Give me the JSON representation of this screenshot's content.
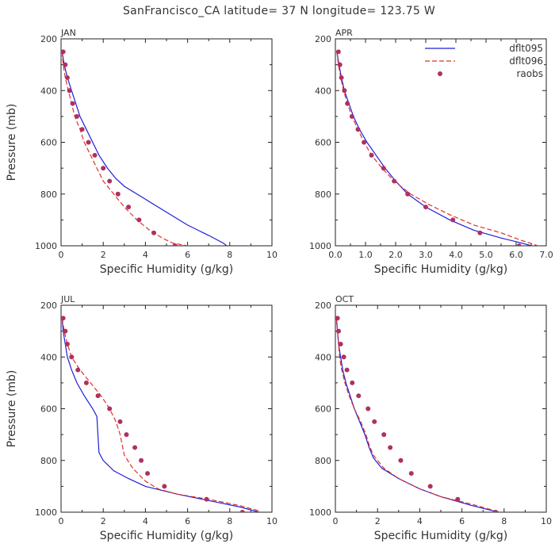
{
  "figure": {
    "title": "SanFrancisco_CA  latitude= 37 N longitude= 123.75 W"
  },
  "legend": {
    "entries": [
      {
        "name": "dflt095",
        "style": "solid",
        "color": "#1f1fd6"
      },
      {
        "name": "dflt096",
        "style": "dashed",
        "color": "#e0302a"
      },
      {
        "name": "raobs",
        "style": "marker",
        "color": "#b03060"
      }
    ]
  },
  "chart_data": [
    {
      "type": "line",
      "panel_title": "JAN",
      "xlabel": "Specific Humidity (g/kg)",
      "ylabel": "Pressure (mb)",
      "xlim": [
        0,
        10
      ],
      "ylim": [
        1000,
        200
      ],
      "y_inverted": true,
      "xticks": [
        0,
        2,
        4,
        6,
        8,
        10
      ],
      "xtick_labels": [
        "0",
        "2",
        "4",
        "6",
        "8",
        "10"
      ],
      "yticks": [
        200,
        400,
        600,
        800,
        1000
      ],
      "ytick_labels": [
        "200",
        "400",
        "600",
        "800",
        "1000"
      ],
      "series": [
        {
          "name": "dflt095",
          "style": "solid",
          "points": [
            [
              0.05,
              250
            ],
            [
              0.15,
              300
            ],
            [
              0.3,
              350
            ],
            [
              0.5,
              400
            ],
            [
              0.7,
              450
            ],
            [
              0.9,
              500
            ],
            [
              1.2,
              550
            ],
            [
              1.5,
              600
            ],
            [
              1.8,
              650
            ],
            [
              2.2,
              700
            ],
            [
              2.6,
              740
            ],
            [
              3.0,
              770
            ],
            [
              4.0,
              820
            ],
            [
              5.0,
              870
            ],
            [
              6.0,
              920
            ],
            [
              7.0,
              960
            ],
            [
              7.7,
              990
            ],
            [
              8.0,
              1010
            ]
          ]
        },
        {
          "name": "dflt096",
          "style": "dashed",
          "points": [
            [
              0.05,
              250
            ],
            [
              0.1,
              300
            ],
            [
              0.2,
              350
            ],
            [
              0.35,
              400
            ],
            [
              0.5,
              450
            ],
            [
              0.65,
              500
            ],
            [
              0.9,
              550
            ],
            [
              1.1,
              600
            ],
            [
              1.4,
              650
            ],
            [
              1.7,
              700
            ],
            [
              2.0,
              750
            ],
            [
              2.5,
              800
            ],
            [
              3.0,
              850
            ],
            [
              3.6,
              900
            ],
            [
              4.2,
              940
            ],
            [
              4.8,
              970
            ],
            [
              5.3,
              990
            ],
            [
              6.0,
              1000
            ],
            [
              7.0,
              1010
            ]
          ]
        },
        {
          "name": "raobs",
          "style": "marker",
          "points": [
            [
              0.1,
              250
            ],
            [
              0.2,
              300
            ],
            [
              0.3,
              350
            ],
            [
              0.4,
              400
            ],
            [
              0.55,
              450
            ],
            [
              0.75,
              500
            ],
            [
              1.0,
              550
            ],
            [
              1.3,
              600
            ],
            [
              1.6,
              650
            ],
            [
              2.0,
              700
            ],
            [
              2.3,
              750
            ],
            [
              2.7,
              800
            ],
            [
              3.2,
              850
            ],
            [
              3.7,
              900
            ],
            [
              4.4,
              950
            ],
            [
              5.4,
              1000
            ]
          ]
        }
      ]
    },
    {
      "type": "line",
      "panel_title": "APR",
      "xlabel": "Specific Humidity (g/kg)",
      "ylabel": "",
      "xlim": [
        0,
        7
      ],
      "ylim": [
        1000,
        200
      ],
      "y_inverted": true,
      "xticks": [
        0,
        1,
        2,
        3,
        4,
        5,
        6,
        7
      ],
      "xtick_labels": [
        "0.0",
        "1.0",
        "2.0",
        "3.0",
        "4.0",
        "5.0",
        "6.0",
        "7.0"
      ],
      "yticks": [
        200,
        400,
        600,
        800,
        1000
      ],
      "ytick_labels": [
        "200",
        "400",
        "600",
        "800",
        "1000"
      ],
      "series": [
        {
          "name": "dflt095",
          "style": "solid",
          "points": [
            [
              0.05,
              250
            ],
            [
              0.12,
              300
            ],
            [
              0.2,
              350
            ],
            [
              0.3,
              400
            ],
            [
              0.45,
              450
            ],
            [
              0.6,
              500
            ],
            [
              0.8,
              550
            ],
            [
              1.05,
              600
            ],
            [
              1.35,
              650
            ],
            [
              1.65,
              700
            ],
            [
              2.0,
              750
            ],
            [
              2.4,
              800
            ],
            [
              3.0,
              850
            ],
            [
              3.8,
              900
            ],
            [
              4.6,
              940
            ],
            [
              5.5,
              970
            ],
            [
              6.2,
              990
            ],
            [
              6.5,
              1000
            ]
          ]
        },
        {
          "name": "dflt096",
          "style": "dashed",
          "points": [
            [
              0.05,
              250
            ],
            [
              0.1,
              300
            ],
            [
              0.18,
              350
            ],
            [
              0.27,
              400
            ],
            [
              0.4,
              450
            ],
            [
              0.55,
              500
            ],
            [
              0.75,
              550
            ],
            [
              0.95,
              600
            ],
            [
              1.2,
              650
            ],
            [
              1.55,
              700
            ],
            [
              1.95,
              750
            ],
            [
              2.5,
              800
            ],
            [
              3.1,
              840
            ],
            [
              3.8,
              880
            ],
            [
              4.6,
              920
            ],
            [
              5.5,
              950
            ],
            [
              6.2,
              980
            ],
            [
              6.6,
              995
            ],
            [
              7.0,
              1010
            ]
          ]
        },
        {
          "name": "raobs",
          "style": "marker",
          "points": [
            [
              0.1,
              250
            ],
            [
              0.15,
              300
            ],
            [
              0.2,
              350
            ],
            [
              0.3,
              400
            ],
            [
              0.4,
              450
            ],
            [
              0.55,
              500
            ],
            [
              0.75,
              550
            ],
            [
              0.95,
              600
            ],
            [
              1.2,
              650
            ],
            [
              1.6,
              700
            ],
            [
              1.95,
              750
            ],
            [
              2.4,
              800
            ],
            [
              3.0,
              850
            ],
            [
              3.9,
              900
            ],
            [
              4.8,
              950
            ],
            [
              6.1,
              1000
            ]
          ]
        }
      ]
    },
    {
      "type": "line",
      "panel_title": "JUL",
      "xlabel": "Specific Humidity (g/kg)",
      "ylabel": "Pressure (mb)",
      "xlim": [
        0,
        10
      ],
      "ylim": [
        1000,
        200
      ],
      "y_inverted": true,
      "xticks": [
        0,
        2,
        4,
        6,
        8,
        10
      ],
      "xtick_labels": [
        "0",
        "2",
        "4",
        "6",
        "8",
        "10"
      ],
      "yticks": [
        200,
        400,
        600,
        800,
        1000
      ],
      "ytick_labels": [
        "200",
        "400",
        "600",
        "800",
        "1000"
      ],
      "series": [
        {
          "name": "dflt095",
          "style": "solid",
          "points": [
            [
              0.05,
              250
            ],
            [
              0.1,
              300
            ],
            [
              0.2,
              350
            ],
            [
              0.3,
              400
            ],
            [
              0.5,
              450
            ],
            [
              0.75,
              500
            ],
            [
              1.1,
              550
            ],
            [
              1.5,
              600
            ],
            [
              1.7,
              630
            ],
            [
              1.75,
              700
            ],
            [
              1.8,
              770
            ],
            [
              2.0,
              800
            ],
            [
              2.5,
              840
            ],
            [
              3.2,
              870
            ],
            [
              4.0,
              900
            ],
            [
              5.5,
              930
            ],
            [
              7.0,
              955
            ],
            [
              8.5,
              980
            ],
            [
              9.4,
              1000
            ],
            [
              9.6,
              1010
            ]
          ]
        },
        {
          "name": "dflt096",
          "style": "dashed",
          "points": [
            [
              0.05,
              250
            ],
            [
              0.15,
              300
            ],
            [
              0.3,
              350
            ],
            [
              0.5,
              400
            ],
            [
              0.9,
              450
            ],
            [
              1.4,
              500
            ],
            [
              1.9,
              550
            ],
            [
              2.3,
              600
            ],
            [
              2.6,
              650
            ],
            [
              2.8,
              700
            ],
            [
              3.0,
              780
            ],
            [
              3.4,
              830
            ],
            [
              4.0,
              880
            ],
            [
              4.6,
              910
            ],
            [
              5.5,
              930
            ],
            [
              7.0,
              950
            ],
            [
              8.5,
              975
            ],
            [
              9.4,
              995
            ],
            [
              9.6,
              1010
            ]
          ]
        },
        {
          "name": "raobs",
          "style": "marker",
          "points": [
            [
              0.1,
              250
            ],
            [
              0.2,
              300
            ],
            [
              0.3,
              350
            ],
            [
              0.5,
              400
            ],
            [
              0.8,
              450
            ],
            [
              1.2,
              500
            ],
            [
              1.75,
              550
            ],
            [
              2.3,
              600
            ],
            [
              2.8,
              650
            ],
            [
              3.1,
              700
            ],
            [
              3.5,
              750
            ],
            [
              3.8,
              800
            ],
            [
              4.1,
              850
            ],
            [
              4.9,
              900
            ],
            [
              6.9,
              950
            ],
            [
              8.6,
              1000
            ]
          ]
        }
      ]
    },
    {
      "type": "line",
      "panel_title": "OCT",
      "xlabel": "Specific Humidity (g/kg)",
      "ylabel": "",
      "xlim": [
        0,
        10
      ],
      "ylim": [
        1000,
        200
      ],
      "y_inverted": true,
      "xticks": [
        0,
        2,
        4,
        6,
        8,
        10
      ],
      "xtick_labels": [
        "0",
        "2",
        "4",
        "6",
        "8",
        "10"
      ],
      "yticks": [
        200,
        400,
        600,
        800,
        1000
      ],
      "ytick_labels": [
        "200",
        "400",
        "600",
        "800",
        "1000"
      ],
      "series": [
        {
          "name": "dflt095",
          "style": "solid",
          "points": [
            [
              0.05,
              250
            ],
            [
              0.1,
              300
            ],
            [
              0.15,
              350
            ],
            [
              0.25,
              400
            ],
            [
              0.35,
              450
            ],
            [
              0.5,
              500
            ],
            [
              0.7,
              550
            ],
            [
              0.9,
              600
            ],
            [
              1.15,
              650
            ],
            [
              1.4,
              700
            ],
            [
              1.6,
              750
            ],
            [
              1.8,
              790
            ],
            [
              2.2,
              830
            ],
            [
              3.0,
              870
            ],
            [
              4.0,
              910
            ],
            [
              5.0,
              940
            ],
            [
              6.5,
              975
            ],
            [
              7.5,
              995
            ],
            [
              8.3,
              1010
            ]
          ]
        },
        {
          "name": "dflt096",
          "style": "dashed",
          "points": [
            [
              0.05,
              250
            ],
            [
              0.1,
              300
            ],
            [
              0.15,
              350
            ],
            [
              0.2,
              400
            ],
            [
              0.3,
              450
            ],
            [
              0.45,
              500
            ],
            [
              0.65,
              550
            ],
            [
              0.9,
              600
            ],
            [
              1.2,
              650
            ],
            [
              1.45,
              700
            ],
            [
              1.6,
              740
            ],
            [
              1.8,
              780
            ],
            [
              2.3,
              830
            ],
            [
              3.0,
              870
            ],
            [
              4.0,
              910
            ],
            [
              5.0,
              940
            ],
            [
              6.5,
              970
            ],
            [
              7.8,
              1000
            ]
          ]
        },
        {
          "name": "raobs",
          "style": "marker",
          "points": [
            [
              0.1,
              250
            ],
            [
              0.15,
              300
            ],
            [
              0.25,
              350
            ],
            [
              0.4,
              400
            ],
            [
              0.55,
              450
            ],
            [
              0.8,
              500
            ],
            [
              1.1,
              550
            ],
            [
              1.55,
              600
            ],
            [
              1.85,
              650
            ],
            [
              2.3,
              700
            ],
            [
              2.6,
              750
            ],
            [
              3.1,
              800
            ],
            [
              3.6,
              850
            ],
            [
              4.5,
              900
            ],
            [
              5.8,
              950
            ],
            [
              7.6,
              1000
            ]
          ]
        }
      ]
    }
  ]
}
